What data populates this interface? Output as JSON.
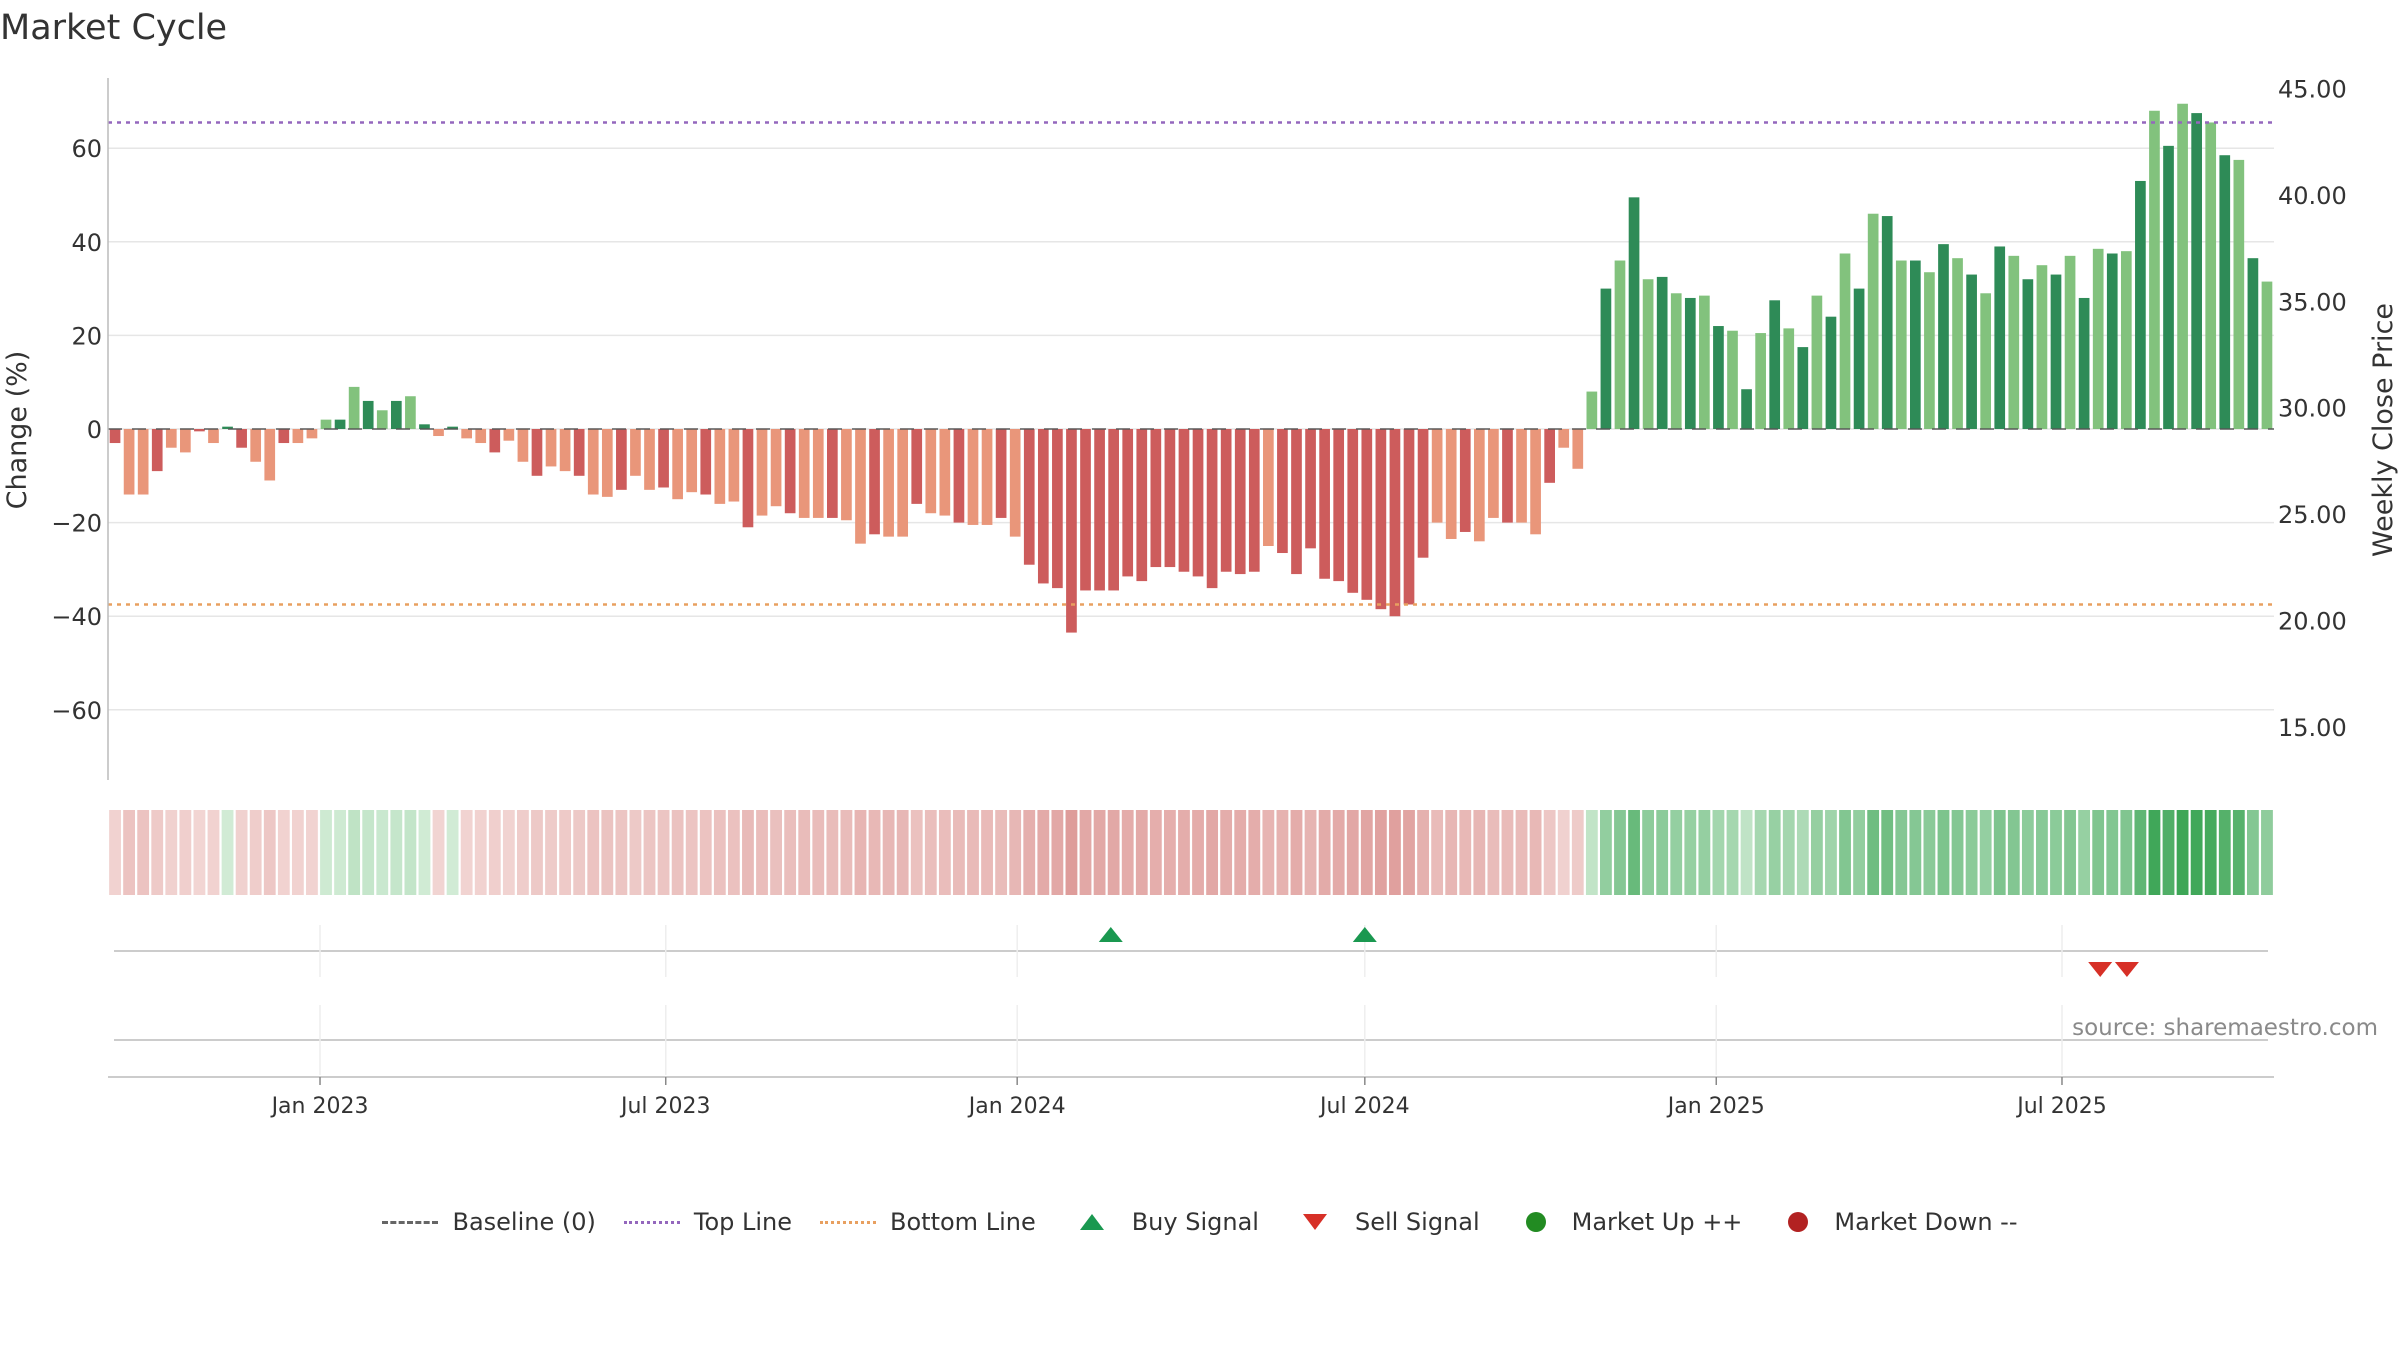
{
  "chart_data": {
    "type": "bar",
    "title": "Market Cycle",
    "source": "source: sharemaestro.com",
    "ylabel": "Change (%)",
    "y2label": "Weekly Close Price",
    "ylim": [
      -75,
      75
    ],
    "y2lim": [
      12.5,
      45.5
    ],
    "yticks": [
      60,
      40,
      20,
      0,
      -20,
      -40,
      -60
    ],
    "y2ticks": [
      "45.00",
      "40.00",
      "35.00",
      "30.00",
      "25.00",
      "20.00",
      "15.00"
    ],
    "y2tick_values": [
      45,
      40,
      35,
      30,
      25,
      20,
      15
    ],
    "x_start": "2022-09-12",
    "x_end": "2025-10-20",
    "week_step_days": 7,
    "xticks": [
      {
        "date": "2023-01-01",
        "label": "Jan 2023"
      },
      {
        "date": "2023-07-01",
        "label": "Jul 2023"
      },
      {
        "date": "2024-01-01",
        "label": "Jan 2024"
      },
      {
        "date": "2024-07-01",
        "label": "Jul 2024"
      },
      {
        "date": "2025-01-01",
        "label": "Jan 2025"
      },
      {
        "date": "2025-07-01",
        "label": "Jul 2025"
      }
    ],
    "top_line": 65.5,
    "bottom_line": -37.5,
    "baseline": 0,
    "series": [
      {
        "name": "Change (%)",
        "values": [
          -3,
          -14,
          -14,
          -9,
          -4,
          -5,
          -0.5,
          -3,
          0.5,
          -4,
          -7,
          -11,
          -3,
          -3,
          -2,
          2,
          2,
          9,
          6,
          4,
          6,
          7,
          1,
          -1.5,
          0.5,
          -2,
          -3,
          -5,
          -2.5,
          -7,
          -10,
          -8,
          -9,
          -10,
          -14,
          -14.5,
          -13,
          -10,
          -13,
          -12.5,
          -15,
          -13.5,
          -14,
          -16,
          -15.5,
          -21,
          -18.5,
          -16.5,
          -18,
          -19,
          -19,
          -19,
          -19.5,
          -24.5,
          -22.5,
          -23,
          -23,
          -16,
          -18,
          -18.5,
          -20,
          -20.5,
          -20.5,
          -19,
          -23,
          -29,
          -33,
          -34,
          -43.5,
          -34.5,
          -34.5,
          -34.5,
          -31.5,
          -32.5,
          -29.5,
          -29.5,
          -30.5,
          -31.5,
          -34,
          -30.5,
          -31,
          -30.5,
          -25,
          -26.5,
          -31,
          -25.5,
          -32,
          -32.5,
          -35,
          -36.5,
          -38.5,
          -40,
          -37.5,
          -27.5,
          -20,
          -23.5,
          -22,
          -24,
          -19,
          -20,
          -20,
          -22.5,
          -11.5,
          -4,
          -8.5,
          8,
          30,
          36,
          49.5,
          32,
          32.5,
          29,
          28,
          28.5,
          22,
          21,
          8.5,
          20.5,
          27.5,
          21.5,
          17.5,
          28.5,
          24,
          37.5,
          30,
          46,
          45.5,
          36,
          36,
          33.5,
          39.5,
          36.5,
          33,
          29,
          39,
          37,
          32,
          35,
          33,
          37,
          28,
          38.5,
          37.5,
          38,
          53,
          68,
          60.5,
          69.5,
          67.5,
          65.5,
          58.5,
          57.5,
          36.5,
          31.5
        ]
      }
    ],
    "cycle_strip_note": "per-week intensity strip mirrors bar sign and magnitude",
    "buy_signals": [
      "2024-02-19",
      "2024-07-01"
    ],
    "sell_signals": [
      "2025-07-21",
      "2025-08-04"
    ]
  },
  "legend": [
    {
      "label": "Baseline (0)",
      "symbol": "dash",
      "color": "#666666"
    },
    {
      "label": "Top Line",
      "symbol": "dotted",
      "color": "#9467bd"
    },
    {
      "label": "Bottom Line",
      "symbol": "dotted",
      "color": "#e8a060"
    },
    {
      "label": "Buy Signal",
      "symbol": "triangle-up",
      "color": "#1a9850"
    },
    {
      "label": "Sell Signal",
      "symbol": "triangle-down",
      "color": "#d73027"
    },
    {
      "label": "Market Up ++",
      "symbol": "dot",
      "color": "#228b22"
    },
    {
      "label": "Market Down --",
      "symbol": "dot",
      "color": "#b22222"
    }
  ],
  "colors": {
    "up_strong": "#2e8b57",
    "up_light": "#82c27d",
    "down_strong": "#cd5c5c",
    "down_light": "#e9967a",
    "top_line": "#9467bd",
    "bottom_line": "#e8a060",
    "grid": "#e6e6e6"
  }
}
